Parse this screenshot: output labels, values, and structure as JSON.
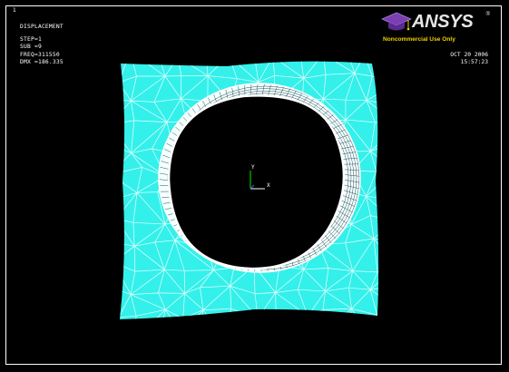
{
  "window": {
    "number": "1"
  },
  "plot_info": {
    "title": "DISPLACEMENT",
    "step": "STEP=1",
    "sub": "SUB =9",
    "freq": "FREQ=311550",
    "dmx": "DMX =186.335"
  },
  "logo": {
    "wordmark": "ANSYS",
    "registered": "®",
    "subtitle": "Noncommercial Use Only"
  },
  "timestamp": {
    "date": "OCT 20 2006",
    "time": "15:57:23"
  },
  "triad": {
    "y_label": "Y",
    "x_label": "X"
  },
  "colors": {
    "background": "#000000",
    "mesh_fill": "#34f0ea",
    "mesh_lines": "#e6ffff",
    "hole_edge": "#ffffff",
    "logo_text": "#e6e6e6",
    "logo_subtitle": "#f0d000",
    "logo_cap": "#7a3fb0",
    "triad_y": "#00c800",
    "triad_x": "#ffffff"
  }
}
